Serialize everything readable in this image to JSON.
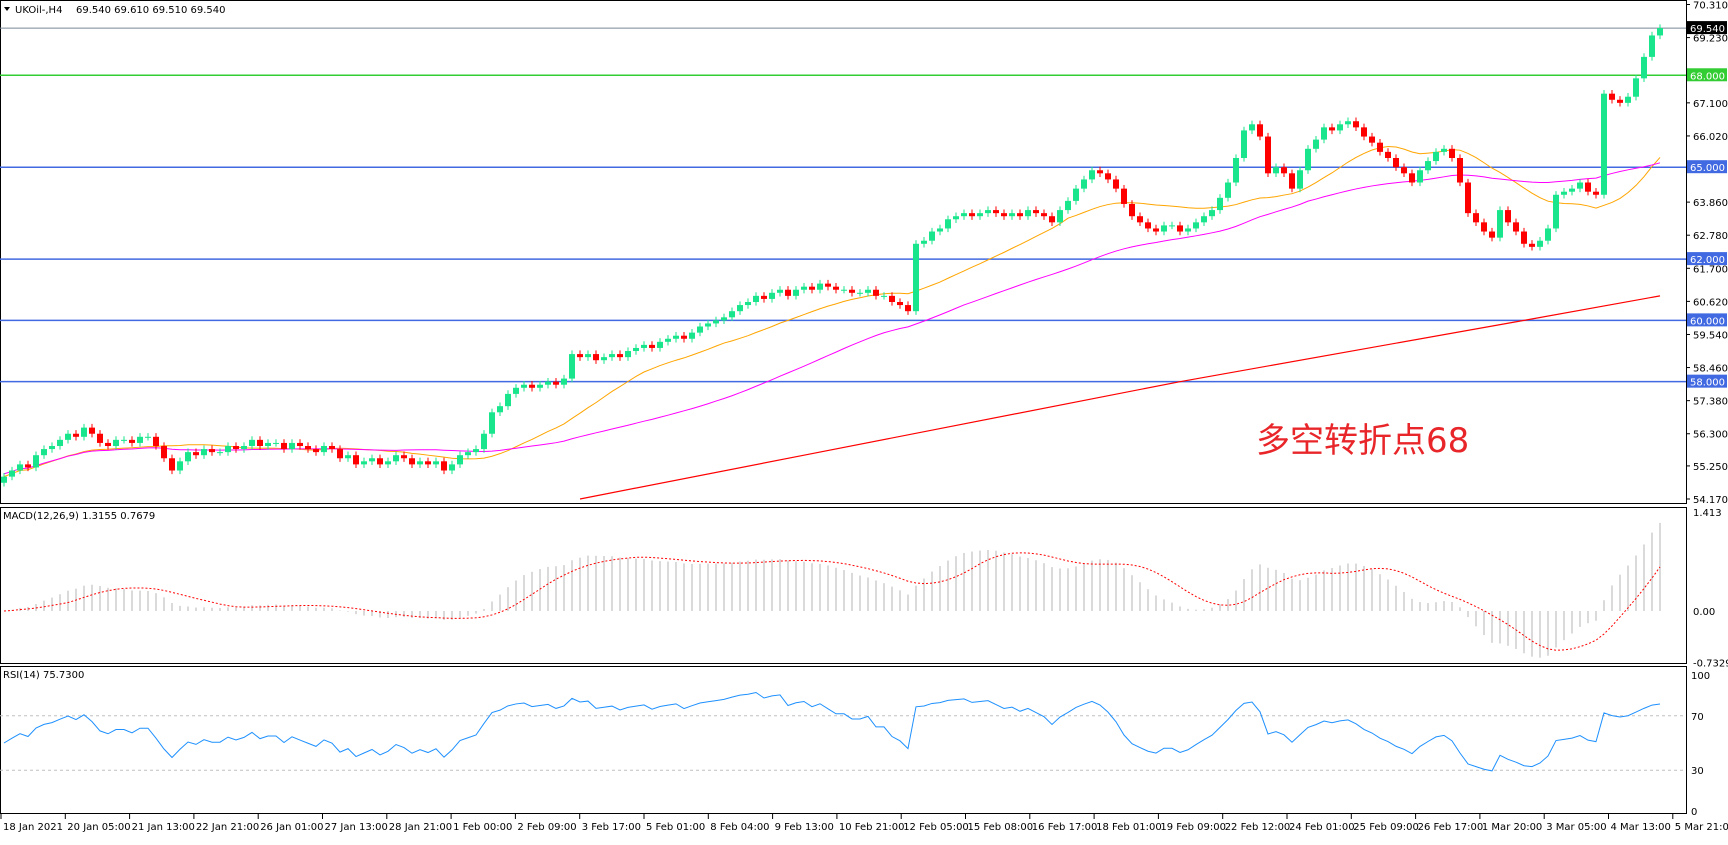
{
  "header": {
    "symbol": "UKOil-,H4",
    "ohlc": "69.540 69.610 69.510 69.540"
  },
  "colors": {
    "bull": "#19e68c",
    "bear": "#ff0000",
    "ma_fast": "#ffa500",
    "ma_mid": "#ff00ff",
    "ma_slow": "#ff0000",
    "level_blue": "#4169e1",
    "level_green": "#32cd32",
    "macd_hist": "#c0c0c0",
    "macd_signal": "#ff0000",
    "rsi": "#1e90ff"
  },
  "annotation": "多空转折点68",
  "chart_data": {
    "type": "candlestick",
    "timeframe": "H4",
    "price_axis": {
      "min": 54.17,
      "max": 70.31,
      "ticks": [
        "70.310",
        "69.230",
        "67.100",
        "66.020",
        "63.860",
        "62.780",
        "61.700",
        "60.620",
        "59.540",
        "58.460",
        "57.380",
        "56.300",
        "55.250",
        "54.170"
      ]
    },
    "current_price": {
      "label": "69.540",
      "value": 69.54
    },
    "levels": [
      {
        "label": "68.000",
        "value": 68.0,
        "color": "green"
      },
      {
        "label": "65.000",
        "value": 65.0,
        "color": "blue"
      },
      {
        "label": "62.000",
        "value": 62.0,
        "color": "blue"
      },
      {
        "label": "60.000",
        "value": 60.0,
        "color": "blue"
      },
      {
        "label": "58.000",
        "value": 58.0,
        "color": "blue"
      }
    ],
    "time_labels": [
      "18 Jan 2021",
      "20 Jan 05:00",
      "21 Jan 13:00",
      "22 Jan 21:00",
      "26 Jan 01:00",
      "27 Jan 13:00",
      "28 Jan 21:00",
      "1 Feb 00:00",
      "2 Feb 09:00",
      "3 Feb 17:00",
      "5 Feb 01:00",
      "8 Feb 04:00",
      "9 Feb 13:00",
      "10 Feb 21:00",
      "12 Feb 05:00",
      "15 Feb 08:00",
      "16 Feb 17:00",
      "18 Feb 01:00",
      "19 Feb 09:00",
      "22 Feb 12:00",
      "24 Feb 01:00",
      "25 Feb 09:00",
      "26 Feb 17:00",
      "1 Mar 20:00",
      "3 Mar 05:00",
      "4 Mar 13:00",
      "5 Mar 21:00"
    ],
    "close": [
      54.9,
      55.1,
      55.3,
      55.2,
      55.6,
      55.8,
      55.9,
      56.1,
      56.3,
      56.2,
      56.5,
      56.3,
      56.0,
      55.9,
      56.1,
      56.1,
      56.0,
      56.2,
      56.2,
      55.9,
      55.5,
      55.1,
      55.4,
      55.7,
      55.6,
      55.8,
      55.7,
      55.7,
      55.9,
      55.8,
      55.9,
      56.1,
      55.9,
      56.0,
      56.0,
      55.8,
      56.0,
      55.9,
      55.8,
      55.7,
      55.9,
      55.8,
      55.5,
      55.6,
      55.3,
      55.4,
      55.5,
      55.3,
      55.4,
      55.6,
      55.5,
      55.3,
      55.4,
      55.3,
      55.4,
      55.1,
      55.3,
      55.6,
      55.7,
      55.8,
      56.3,
      57.0,
      57.2,
      57.6,
      57.8,
      57.9,
      57.8,
      57.9,
      58.0,
      57.9,
      58.1,
      58.9,
      58.8,
      58.9,
      58.7,
      58.8,
      58.9,
      58.8,
      59.0,
      59.1,
      59.2,
      59.1,
      59.3,
      59.4,
      59.5,
      59.4,
      59.6,
      59.8,
      59.9,
      60.0,
      60.1,
      60.3,
      60.5,
      60.6,
      60.8,
      60.7,
      60.9,
      61.0,
      60.8,
      61.0,
      61.1,
      61.0,
      61.2,
      61.1,
      61.0,
      61.0,
      60.9,
      60.9,
      61.0,
      60.8,
      60.8,
      60.6,
      60.5,
      60.3,
      62.5,
      62.6,
      62.9,
      63.0,
      63.3,
      63.4,
      63.5,
      63.4,
      63.5,
      63.6,
      63.5,
      63.4,
      63.5,
      63.4,
      63.6,
      63.5,
      63.4,
      63.2,
      63.6,
      63.9,
      64.3,
      64.6,
      64.9,
      64.8,
      64.6,
      64.3,
      63.8,
      63.4,
      63.2,
      63.0,
      62.9,
      63.1,
      63.1,
      62.9,
      63.0,
      63.2,
      63.4,
      63.6,
      64.0,
      64.5,
      65.3,
      66.2,
      66.4,
      66.0,
      64.8,
      65.0,
      64.8,
      64.3,
      64.9,
      65.6,
      65.9,
      66.3,
      66.2,
      66.4,
      66.5,
      66.3,
      66.0,
      65.8,
      65.5,
      65.3,
      65.0,
      64.8,
      64.5,
      64.9,
      65.2,
      65.5,
      65.6,
      65.3,
      64.5,
      63.5,
      63.2,
      62.9,
      62.7,
      63.6,
      63.2,
      62.9,
      62.5,
      62.4,
      62.6,
      63.0,
      64.1,
      64.2,
      64.3,
      64.5,
      64.2,
      64.1,
      67.4,
      67.2,
      67.1,
      67.3,
      67.9,
      68.6,
      69.3,
      69.54
    ],
    "ma_slow_points": [
      [
        72,
        54.17
      ],
      [
        100,
        55.6
      ],
      [
        147,
        58.0
      ],
      [
        190,
        60.0
      ],
      [
        207,
        60.8
      ]
    ],
    "macd": {
      "label": "MACD(12,26,9) 1.3155 0.7679",
      "scale": {
        "max": 1.413,
        "zero": 0.0,
        "min": -0.7329
      },
      "tick_labels": [
        "1.413",
        "0.00",
        "-0.7329"
      ]
    },
    "rsi": {
      "label": "RSI(14) 75.7300",
      "levels": [
        70,
        30
      ],
      "tick_labels": [
        "100",
        "70",
        "30",
        "0"
      ]
    }
  }
}
